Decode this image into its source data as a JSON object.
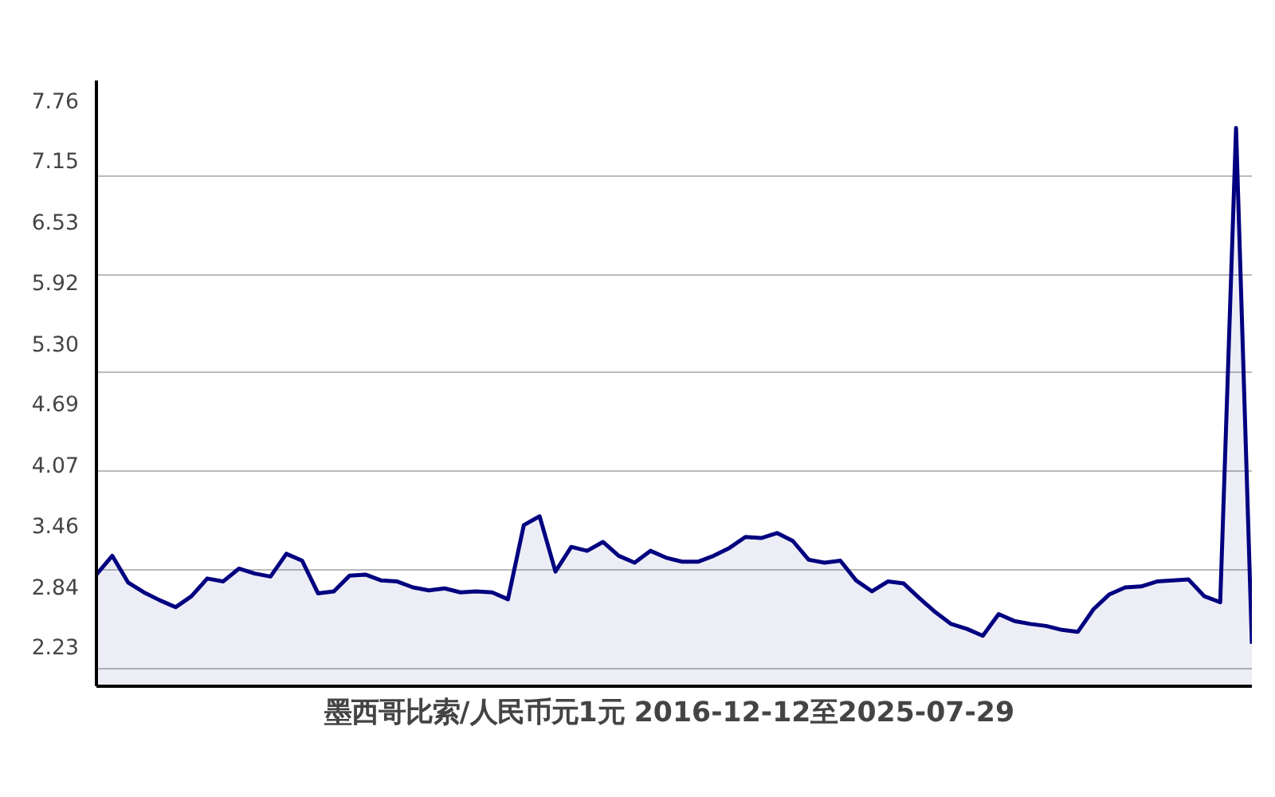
{
  "chart_data": {
    "type": "area",
    "title": "墨西哥比索/人民币元1元  2016-12-12至2025-07-29",
    "categories": [
      null,
      null,
      null,
      null,
      null,
      null,
      null,
      null,
      null,
      null,
      null,
      null,
      null,
      null,
      null,
      null,
      null,
      null,
      null,
      null,
      null,
      null,
      null,
      null,
      null,
      null,
      null,
      null,
      null,
      null,
      null,
      null,
      null,
      null,
      null,
      null,
      null,
      null,
      null,
      null,
      null,
      null,
      null,
      null,
      null,
      null,
      null,
      null,
      null,
      null,
      null,
      null,
      null,
      null,
      null,
      null,
      null,
      null,
      null,
      null,
      null,
      null,
      null,
      null,
      null,
      null,
      null,
      null,
      null,
      null,
      null,
      null,
      null,
      null
    ],
    "series": [
      {
        "color": "#000080",
        "values": [
          2.96,
          3.15,
          2.88,
          2.78,
          2.7,
          2.63,
          2.74,
          2.92,
          2.89,
          3.02,
          2.97,
          2.94,
          3.17,
          3.1,
          2.77,
          2.79,
          2.95,
          2.96,
          2.9,
          2.89,
          2.83,
          2.8,
          2.82,
          2.78,
          2.79,
          2.78,
          2.71,
          3.46,
          3.55,
          2.99,
          3.24,
          3.2,
          3.29,
          3.15,
          3.08,
          3.2,
          3.13,
          3.09,
          3.09,
          3.15,
          3.23,
          3.34,
          3.33,
          3.38,
          3.3,
          3.11,
          3.08,
          3.1,
          2.9,
          2.79,
          2.89,
          2.87,
          2.72,
          2.58,
          2.46,
          2.41,
          2.34,
          2.56,
          2.49,
          2.46,
          2.44,
          2.4,
          2.38,
          2.61,
          2.76,
          2.83,
          2.84,
          2.89,
          2.9,
          2.91,
          2.74,
          2.68,
          7.48,
          2.26
        ]
      }
    ],
    "ylim": [
      1.83,
      7.96
    ],
    "yticks": [
      {
        "value": 2.23,
        "label": "2.23"
      },
      {
        "value": 2.84,
        "label": "2.84"
      },
      {
        "value": 3.46,
        "label": "3.46"
      },
      {
        "value": 4.07,
        "label": "4.07"
      },
      {
        "value": 4.69,
        "label": "4.69"
      },
      {
        "value": 5.3,
        "label": "5.30"
      },
      {
        "value": 5.92,
        "label": "5.92"
      },
      {
        "value": 6.53,
        "label": "6.53"
      },
      {
        "value": 7.15,
        "label": "7.15"
      },
      {
        "value": 7.76,
        "label": "7.76"
      },
      {
        "value": 2,
        "label": null
      },
      {
        "value": 3,
        "label": null
      },
      {
        "value": 4,
        "label": null
      },
      {
        "value": 5,
        "label": null
      },
      {
        "value": 6,
        "label": null
      },
      {
        "value": 7,
        "label": null
      }
    ],
    "grid": "y",
    "tick_labels": "y"
  }
}
